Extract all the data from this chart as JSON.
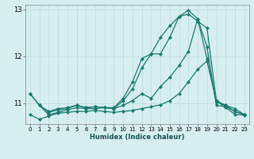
{
  "xlabel": "Humidex (Indice chaleur)",
  "background_color": "#d6eef0",
  "grid_color": "#c0dde0",
  "line_color": "#1a7a6e",
  "xlim": [
    -0.5,
    23.5
  ],
  "ylim_min": 10.55,
  "ylim_max": 13.1,
  "yticks": [
    11,
    12,
    13
  ],
  "xticks": [
    0,
    1,
    2,
    3,
    4,
    5,
    6,
    7,
    8,
    9,
    10,
    11,
    12,
    13,
    14,
    15,
    16,
    17,
    18,
    19,
    20,
    21,
    22,
    23
  ],
  "lines": [
    {
      "x": [
        0,
        1,
        2,
        3,
        4,
        5,
        6,
        7,
        8,
        9,
        10,
        11,
        12,
        13,
        14,
        15,
        16,
        17,
        18,
        19,
        20,
        21,
        22,
        23
      ],
      "y": [
        10.75,
        10.65,
        10.72,
        10.78,
        10.8,
        10.82,
        10.82,
        10.84,
        10.82,
        10.8,
        10.82,
        10.84,
        10.88,
        10.92,
        10.96,
        11.05,
        11.2,
        11.45,
        11.72,
        11.9,
        11.05,
        10.9,
        10.76,
        10.74
      ]
    },
    {
      "x": [
        0,
        1,
        2,
        3,
        4,
        5,
        6,
        7,
        8,
        9,
        10,
        11,
        12,
        13,
        14,
        15,
        16,
        17,
        18,
        19,
        20,
        21,
        22,
        23
      ],
      "y": [
        11.2,
        10.95,
        10.82,
        10.88,
        10.9,
        10.95,
        10.9,
        10.92,
        10.9,
        10.88,
        10.95,
        11.05,
        11.2,
        11.1,
        11.35,
        11.55,
        11.8,
        12.1,
        12.8,
        11.95,
        11.02,
        10.95,
        10.82,
        10.75
      ]
    },
    {
      "x": [
        1,
        2,
        3,
        4,
        5,
        6,
        7,
        8,
        9,
        10,
        11,
        12,
        13,
        14,
        15,
        16,
        17,
        18,
        19,
        20,
        21,
        22,
        23
      ],
      "y": [
        10.95,
        10.75,
        10.8,
        10.85,
        10.9,
        10.88,
        10.88,
        10.9,
        10.88,
        11.05,
        11.3,
        11.75,
        12.05,
        12.05,
        12.4,
        12.85,
        12.9,
        12.75,
        12.6,
        11.05,
        10.95,
        10.88,
        10.75
      ]
    },
    {
      "x": [
        0,
        1,
        2,
        3,
        4,
        5,
        6,
        7,
        8,
        9,
        10,
        11,
        12,
        13,
        14,
        15,
        16,
        17,
        18,
        19,
        20,
        21,
        22,
        23
      ],
      "y": [
        11.2,
        10.95,
        10.8,
        10.85,
        10.88,
        10.95,
        10.9,
        10.92,
        10.9,
        10.9,
        11.1,
        11.45,
        11.95,
        12.05,
        12.4,
        12.65,
        12.85,
        12.98,
        12.8,
        12.2,
        10.95,
        10.92,
        10.82,
        10.75
      ]
    }
  ]
}
